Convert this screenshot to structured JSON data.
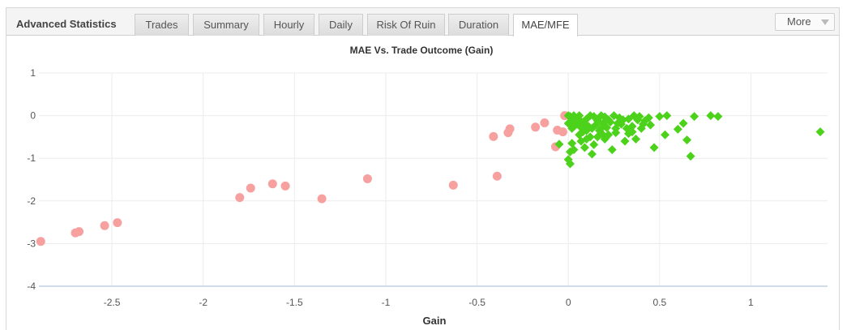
{
  "panel": {
    "title": "Advanced Statistics",
    "tabs": [
      {
        "label": "Trades",
        "active": false
      },
      {
        "label": "Summary",
        "active": false
      },
      {
        "label": "Hourly",
        "active": false
      },
      {
        "label": "Daily",
        "active": false
      },
      {
        "label": "Risk Of Ruin",
        "active": false
      },
      {
        "label": "Duration",
        "active": false
      },
      {
        "label": "MAE/MFE",
        "active": true
      }
    ],
    "more_label": "More",
    "more_icon": "chevron-down-icon"
  },
  "chart_data": {
    "type": "scatter",
    "title": "MAE Vs. Trade Outcome (Gain)",
    "xlabel": "Gain",
    "ylabel": "",
    "xlim": [
      -2.9,
      1.42
    ],
    "ylim": [
      -4,
      1
    ],
    "xticks": [
      -2.5,
      -2,
      -1.5,
      -1,
      -0.5,
      0,
      0.5,
      1
    ],
    "xtick_labels": [
      "-2.5",
      "-2",
      "-1.5",
      "-1",
      "-0.5",
      "0",
      "0.5",
      "1"
    ],
    "yticks": [
      1,
      0,
      -1,
      -2,
      -3,
      -4
    ],
    "ytick_labels": [
      "1",
      "0",
      "-1",
      "-2",
      "-3",
      "-4"
    ],
    "grid": true,
    "colors": {
      "loss": "#f7a0a0",
      "win": "#4dd21c",
      "axis": "#c0d0e0"
    },
    "series": [
      {
        "marker": "circle",
        "color": "#f7a0a0",
        "points": [
          [
            -2.89,
            -2.95
          ],
          [
            -2.7,
            -2.75
          ],
          [
            -2.68,
            -2.72
          ],
          [
            -2.54,
            -2.58
          ],
          [
            -2.47,
            -2.51
          ],
          [
            -1.8,
            -1.92
          ],
          [
            -1.74,
            -1.7
          ],
          [
            -1.62,
            -1.6
          ],
          [
            -1.55,
            -1.65
          ],
          [
            -1.35,
            -1.95
          ],
          [
            -1.1,
            -1.48
          ],
          [
            -0.63,
            -1.63
          ],
          [
            -0.39,
            -1.42
          ],
          [
            -0.41,
            -0.49
          ],
          [
            -0.33,
            -0.4
          ],
          [
            -0.32,
            -0.31
          ],
          [
            -0.18,
            -0.27
          ],
          [
            -0.13,
            -0.17
          ],
          [
            -0.07,
            -0.73
          ],
          [
            -0.06,
            -0.34
          ],
          [
            -0.03,
            -0.38
          ],
          [
            -0.02,
            0.0
          ]
        ]
      },
      {
        "marker": "diamond",
        "color": "#4dd21c",
        "points": [
          [
            -0.05,
            -0.67
          ],
          [
            0.0,
            -1.03
          ],
          [
            0.01,
            -1.13
          ],
          [
            0.01,
            -0.85
          ],
          [
            0.02,
            -0.65
          ],
          [
            0.03,
            -0.8
          ],
          [
            0.02,
            -0.3
          ],
          [
            0.04,
            -0.22
          ],
          [
            0.06,
            -0.45
          ],
          [
            0.07,
            -0.6
          ],
          [
            0.09,
            -0.75
          ],
          [
            0.1,
            -0.55
          ],
          [
            0.12,
            -0.5
          ],
          [
            0.13,
            -0.9
          ],
          [
            0.14,
            -0.68
          ],
          [
            0.16,
            -0.5
          ],
          [
            0.18,
            -0.3
          ],
          [
            0.2,
            -0.55
          ],
          [
            0.22,
            -0.45
          ],
          [
            0.24,
            -0.8
          ],
          [
            0.26,
            -0.3
          ],
          [
            0.29,
            -0.2
          ],
          [
            0.31,
            -0.6
          ],
          [
            0.33,
            -0.42
          ],
          [
            0.35,
            -0.25
          ],
          [
            0.37,
            -0.55
          ],
          [
            0.4,
            -0.3
          ],
          [
            0.42,
            -0.12
          ],
          [
            0.45,
            -0.22
          ],
          [
            0.47,
            -0.75
          ],
          [
            0.53,
            -0.45
          ],
          [
            0.6,
            -0.32
          ],
          [
            0.63,
            -0.18
          ],
          [
            0.65,
            -0.57
          ],
          [
            0.67,
            -0.95
          ],
          [
            0.69,
            -0.02
          ],
          [
            0.78,
            0.0
          ],
          [
            0.82,
            -0.02
          ],
          [
            1.38,
            -0.38
          ],
          [
            0.54,
            0.0
          ],
          [
            0.5,
            -0.02
          ],
          [
            0.39,
            -0.02
          ],
          [
            0.36,
            0.0
          ],
          [
            0.33,
            -0.08
          ],
          [
            0.28,
            -0.05
          ],
          [
            0.25,
            0.0
          ],
          [
            0.22,
            -0.1
          ],
          [
            0.2,
            -0.03
          ],
          [
            0.18,
            0.0
          ],
          [
            0.16,
            -0.12
          ],
          [
            0.14,
            -0.02
          ],
          [
            0.12,
            0.0
          ],
          [
            0.1,
            -0.08
          ],
          [
            0.08,
            -0.15
          ],
          [
            0.06,
            0.0
          ],
          [
            0.05,
            -0.05
          ],
          [
            0.04,
            -0.1
          ],
          [
            0.03,
            0.0
          ],
          [
            0.02,
            -0.12
          ],
          [
            0.01,
            -0.02
          ],
          [
            0.0,
            0.0
          ],
          [
            0.0,
            -0.18
          ],
          [
            0.02,
            -0.25
          ],
          [
            0.05,
            -0.18
          ],
          [
            0.07,
            -0.28
          ],
          [
            0.09,
            -0.2
          ],
          [
            0.11,
            -0.25
          ],
          [
            0.13,
            -0.3
          ],
          [
            0.15,
            -0.22
          ],
          [
            0.17,
            -0.35
          ],
          [
            0.19,
            -0.18
          ],
          [
            0.21,
            -0.28
          ],
          [
            0.23,
            -0.15
          ],
          [
            0.27,
            -0.18
          ],
          [
            0.3,
            -0.1
          ],
          [
            0.32,
            -0.3
          ],
          [
            0.35,
            -0.38
          ],
          [
            0.38,
            -0.1
          ],
          [
            0.41,
            -0.2
          ],
          [
            0.44,
            -0.05
          ],
          [
            0.26,
            -0.4
          ],
          [
            0.19,
            -0.45
          ],
          [
            0.08,
            -0.38
          ],
          [
            0.1,
            -0.35
          ],
          [
            0.06,
            -0.1
          ]
        ]
      }
    ]
  }
}
